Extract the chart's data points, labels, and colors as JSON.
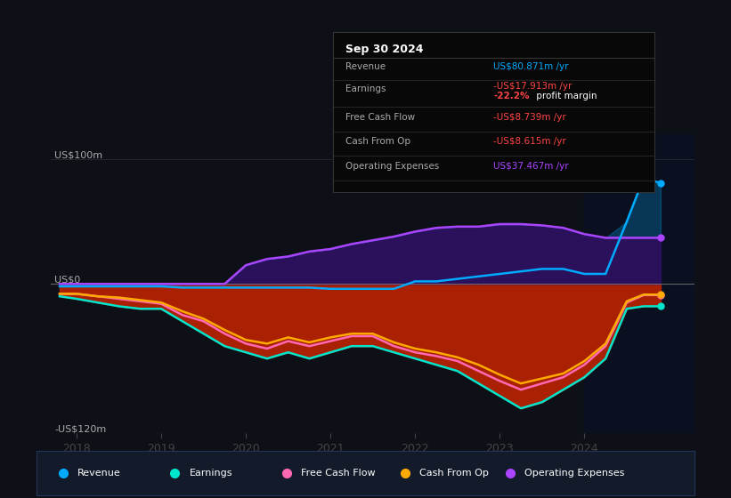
{
  "background_color": "#0d1117",
  "colors": {
    "revenue": "#00aaff",
    "earnings": "#00e5cc",
    "free_cash_flow": "#ff69b4",
    "cash_from_op": "#ffaa00",
    "operating_expenses": "#aa44ff"
  },
  "info_box": {
    "date": "Sep 30 2024",
    "revenue_label": "Revenue",
    "revenue_value": "US$80.871m",
    "revenue_color": "#00aaff",
    "earnings_label": "Earnings",
    "earnings_value": "-US$17.913m",
    "earnings_color": "#ff4444",
    "margin_value": "-22.2%",
    "margin_label": " profit margin",
    "margin_color": "#ff4444",
    "fcf_label": "Free Cash Flow",
    "fcf_value": "-US$8.739m",
    "fcf_color": "#ff4444",
    "cfop_label": "Cash From Op",
    "cfop_value": "-US$8.615m",
    "cfop_color": "#ff4444",
    "opex_label": "Operating Expenses",
    "opex_value": "US$37.467m",
    "opex_color": "#aa44ff"
  },
  "xlim": [
    2017.7,
    2025.3
  ],
  "ylim": [
    -120,
    120
  ],
  "xtick_positions": [
    2018,
    2019,
    2020,
    2021,
    2022,
    2023,
    2024
  ],
  "xtick_labels": [
    "2018",
    "2019",
    "2020",
    "2021",
    "2022",
    "2023",
    "2024"
  ],
  "ylabel_top": "US$100m",
  "ylabel_zero": "US$0",
  "ylabel_bottom": "-US$120m",
  "dark_overlay_start": 2024.0,
  "dark_overlay_end": 2025.3,
  "years": [
    2017.8,
    2018.0,
    2018.25,
    2018.5,
    2018.75,
    2019.0,
    2019.25,
    2019.5,
    2019.75,
    2020.0,
    2020.25,
    2020.5,
    2020.75,
    2021.0,
    2021.25,
    2021.5,
    2021.75,
    2022.0,
    2022.25,
    2022.5,
    2022.75,
    2023.0,
    2023.25,
    2023.5,
    2023.75,
    2024.0,
    2024.25,
    2024.5,
    2024.7,
    2024.9
  ],
  "revenue": [
    -2,
    -2,
    -2,
    -2,
    -2,
    -2,
    -3,
    -3,
    -3,
    -3,
    -3,
    -3,
    -3,
    -4,
    -4,
    -4,
    -4,
    2,
    2,
    4,
    6,
    8,
    10,
    12,
    12,
    8,
    8,
    50,
    85,
    81
  ],
  "operating_expenses": [
    0,
    0,
    0,
    0,
    0,
    0,
    0,
    0,
    0,
    15,
    20,
    22,
    26,
    28,
    32,
    35,
    38,
    42,
    45,
    46,
    46,
    48,
    48,
    47,
    45,
    40,
    37,
    37,
    37,
    37
  ],
  "earnings": [
    -10,
    -12,
    -15,
    -18,
    -20,
    -20,
    -30,
    -40,
    -50,
    -55,
    -60,
    -55,
    -60,
    -55,
    -50,
    -50,
    -55,
    -60,
    -65,
    -70,
    -80,
    -90,
    -100,
    -95,
    -85,
    -75,
    -60,
    -20,
    -18,
    -18
  ],
  "free_cash_flow": [
    -8,
    -8,
    -10,
    -12,
    -14,
    -16,
    -25,
    -30,
    -40,
    -48,
    -52,
    -46,
    -50,
    -46,
    -42,
    -42,
    -50,
    -55,
    -58,
    -62,
    -70,
    -78,
    -85,
    -80,
    -75,
    -65,
    -50,
    -15,
    -9,
    -9
  ],
  "cash_from_op": [
    -8,
    -8,
    -10,
    -11,
    -13,
    -15,
    -22,
    -28,
    -37,
    -45,
    -48,
    -43,
    -47,
    -43,
    -40,
    -40,
    -47,
    -52,
    -55,
    -59,
    -65,
    -73,
    -80,
    -76,
    -72,
    -62,
    -48,
    -14,
    -8.6,
    -8.6
  ],
  "legend_items": [
    {
      "label": "Revenue",
      "color": "#00aaff"
    },
    {
      "label": "Earnings",
      "color": "#00e5cc"
    },
    {
      "label": "Free Cash Flow",
      "color": "#ff69b4"
    },
    {
      "label": "Cash From Op",
      "color": "#ffaa00"
    },
    {
      "label": "Operating Expenses",
      "color": "#aa44ff"
    }
  ]
}
